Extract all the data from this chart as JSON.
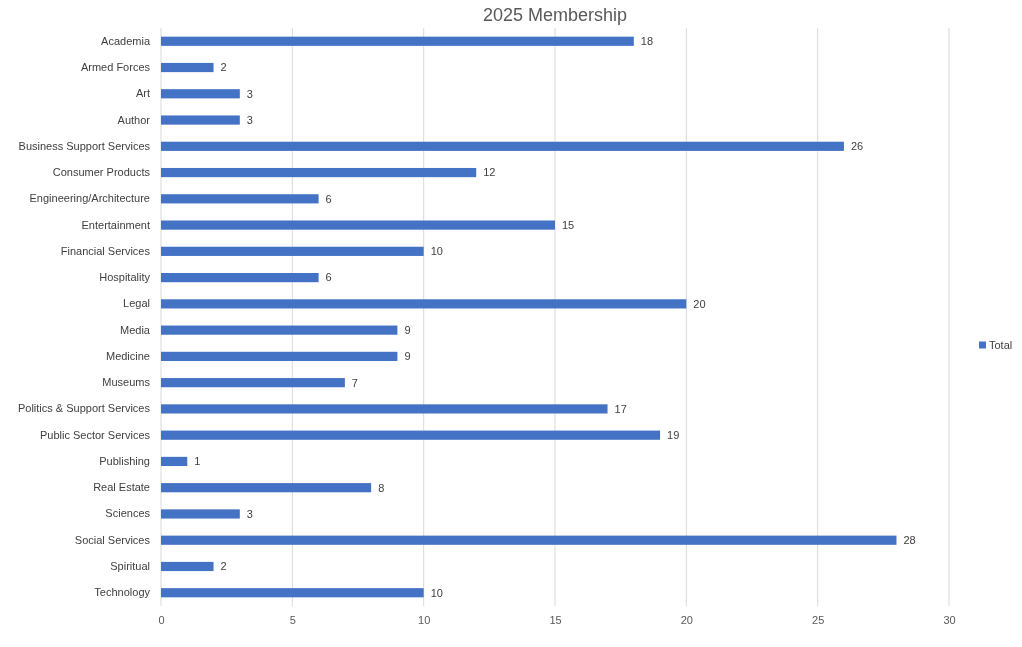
{
  "chart_data": {
    "type": "bar",
    "title": "2025 Membership",
    "orientation": "horizontal",
    "categories": [
      "Academia",
      "Armed Forces",
      "Art",
      "Author",
      "Business Support Services",
      "Consumer Products",
      "Engineering/Architecture",
      "Entertainment",
      "Financial Services",
      "Hospitality",
      "Legal",
      "Media",
      "Medicine",
      "Museums",
      "Politics & Support Services",
      "Public Sector Services",
      "Publishing",
      "Real Estate",
      "Sciences",
      "Social Services",
      "Spiritual",
      "Technology"
    ],
    "series": [
      {
        "name": "Total",
        "color": "#4472c4",
        "values": [
          18,
          2,
          3,
          3,
          26,
          12,
          6,
          15,
          10,
          6,
          20,
          9,
          9,
          7,
          17,
          19,
          1,
          8,
          3,
          28,
          2,
          10
        ]
      }
    ],
    "xlim": [
      0,
      30
    ],
    "xticks": [
      0,
      5,
      10,
      15,
      20,
      25,
      30
    ],
    "grid": "x",
    "legend": "right",
    "data_labels": true
  }
}
